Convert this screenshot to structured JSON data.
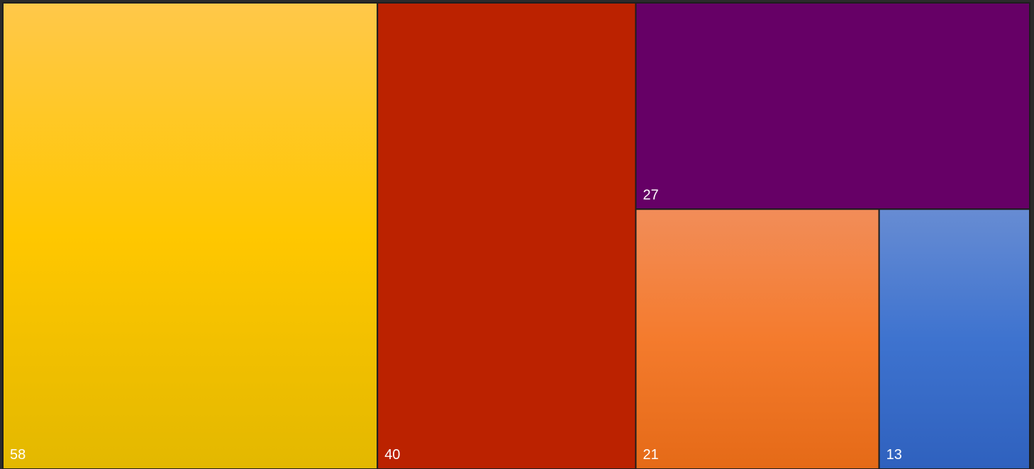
{
  "chart_data": {
    "type": "treemap",
    "title": "",
    "items": [
      {
        "label": "58",
        "value": 58,
        "color": "#FFC000",
        "colors": [
          "#FFC84A",
          "#FFC700",
          "#E3B800"
        ]
      },
      {
        "label": "40",
        "value": 40,
        "color": "#BB2200",
        "colors": [
          "#BB2200",
          "#BB2200",
          "#BB2200"
        ]
      },
      {
        "label": "27",
        "value": 27,
        "color": "#660066",
        "colors": [
          "#660066",
          "#660066",
          "#660066"
        ]
      },
      {
        "label": "21",
        "value": 21,
        "color": "#F07F2B",
        "colors": [
          "#F28D59",
          "#F47B2D",
          "#E56A17"
        ]
      },
      {
        "label": "13",
        "value": 13,
        "color": "#3F73CF",
        "colors": [
          "#678CD3",
          "#3E73CF",
          "#2F61BE"
        ]
      }
    ]
  }
}
